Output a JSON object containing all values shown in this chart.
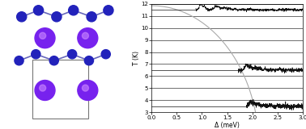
{
  "plot_xlim": [
    0.0,
    3.0
  ],
  "plot_ylim": [
    3.0,
    12.0
  ],
  "plot_yticks": [
    3.0,
    4.0,
    5.0,
    6.0,
    7.0,
    8.0,
    9.0,
    10.0,
    11.0,
    12.0
  ],
  "plot_xticks": [
    0.0,
    0.5,
    1.0,
    1.5,
    2.0,
    2.5,
    3.0
  ],
  "xlabel": "Δ (meV)",
  "ylabel": "T (K)",
  "curve_color": "#aaaaaa",
  "noise_color": "#111111",
  "fig_bg": "#ffffff",
  "small_atom_color": "#2222bb",
  "large_atom_color": "#7722ee",
  "bond_color": "#6666bb",
  "box_color": "#777777",
  "T_high": 11.5,
  "T_mid": 6.5,
  "T_low": 3.5,
  "Tc": 11.85,
  "delta_max": 2.13
}
